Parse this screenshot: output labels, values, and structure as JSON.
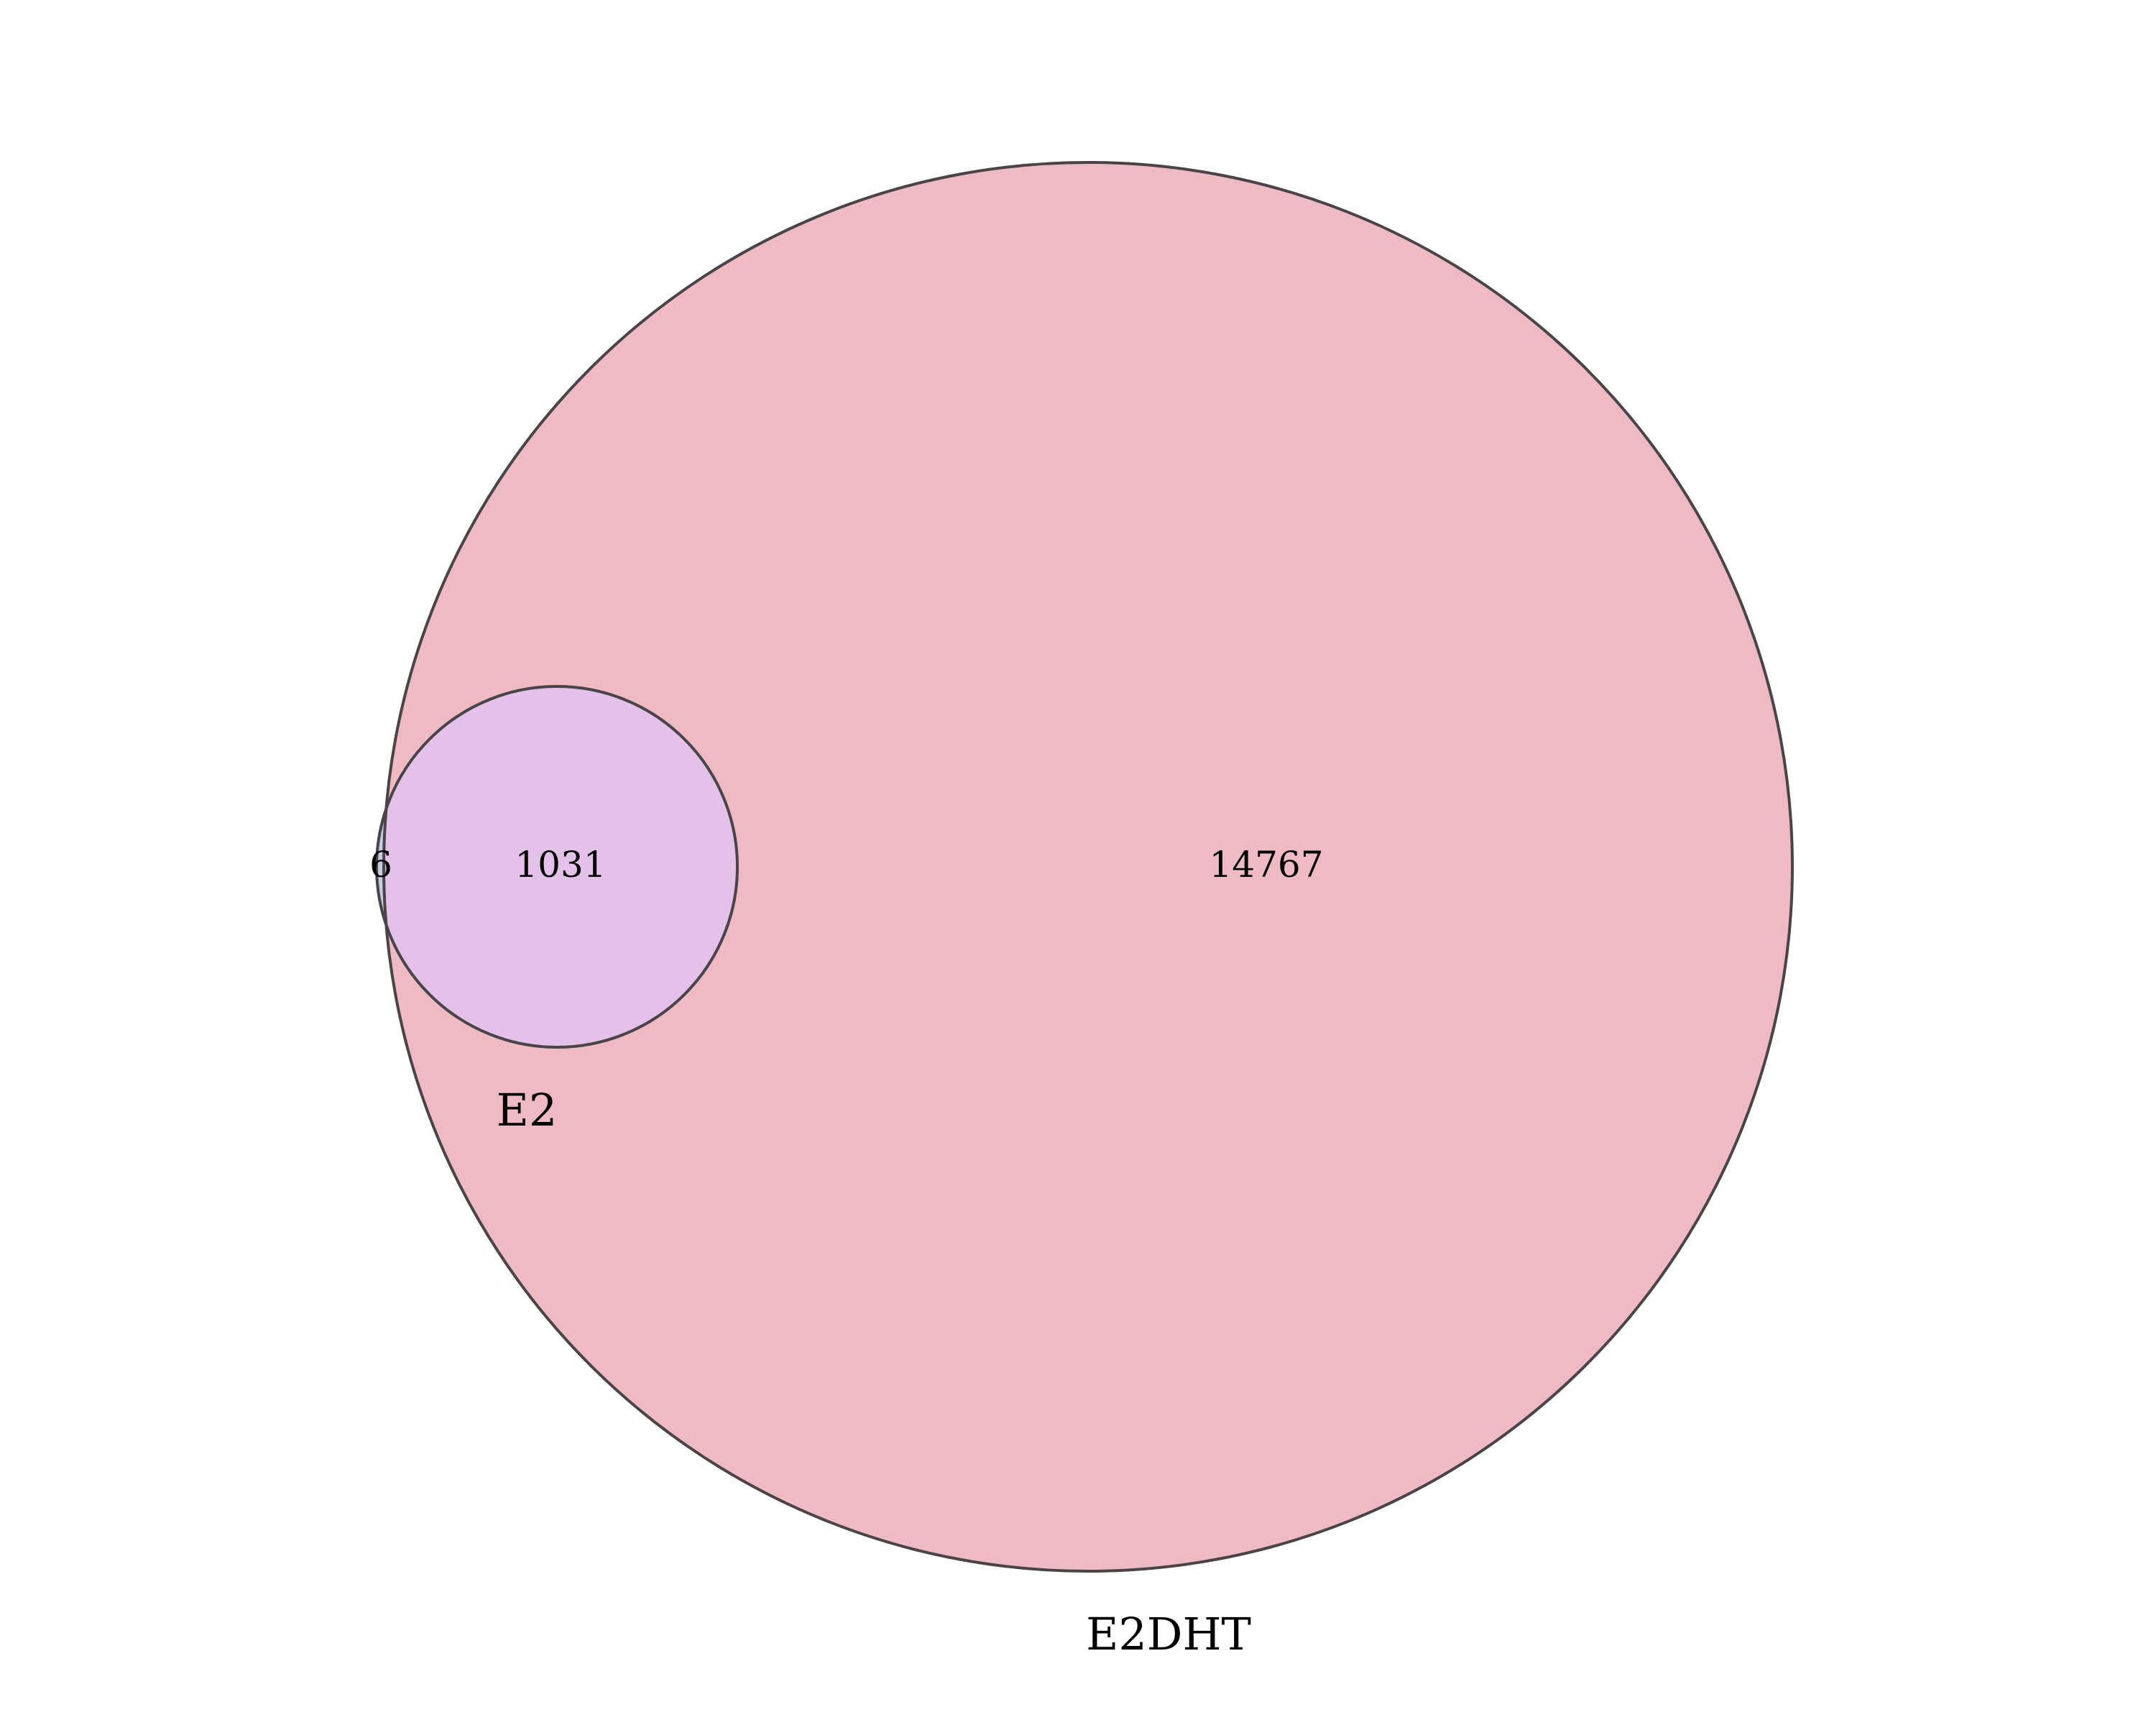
{
  "diagram": {
    "type": "venn2",
    "sets": [
      {
        "name": "E2",
        "color": "#b9a6d6"
      },
      {
        "name": "E2DHT",
        "color": "#e89aaa"
      }
    ],
    "regions": {
      "E2_only": "6",
      "E2_and_E2DHT": "1031",
      "E2DHT_only": "14767"
    },
    "colors": {
      "intersection": "#e3c1e8",
      "e2_only": "#c6cde0",
      "e2dht_only": "#eebac4",
      "outline": "#4a4347"
    }
  }
}
